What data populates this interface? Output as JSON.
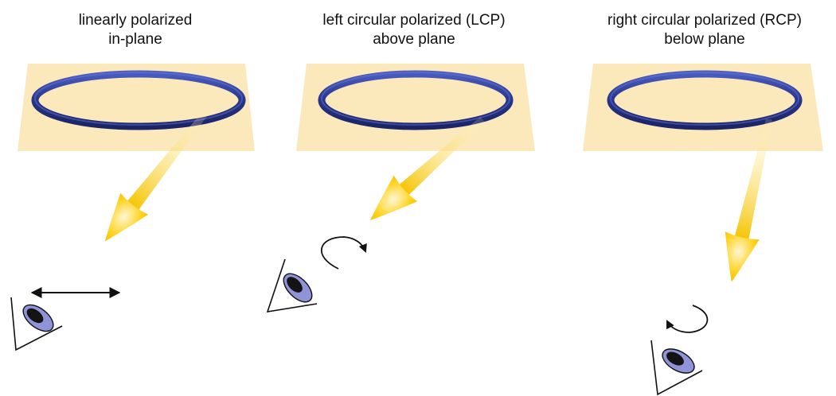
{
  "colors": {
    "plane_fill": "#fbe6b4",
    "ring": "#2f3f94",
    "beam": "#f5c400",
    "eye_iris": "#8f94d8",
    "eye_pupil": "#141414"
  },
  "icons": [
    "eye-icon",
    "double-arrow-icon",
    "rotation-arrow-icon"
  ],
  "panels": [
    {
      "id": "linear",
      "title_line1": "linearly polarized",
      "title_line2": "in-plane"
    },
    {
      "id": "lcp",
      "title_line1": "left circular polarized (LCP)",
      "title_line2": "above plane"
    },
    {
      "id": "rcp",
      "title_line1": "right circular polarized (RCP)",
      "title_line2": "below plane"
    }
  ]
}
